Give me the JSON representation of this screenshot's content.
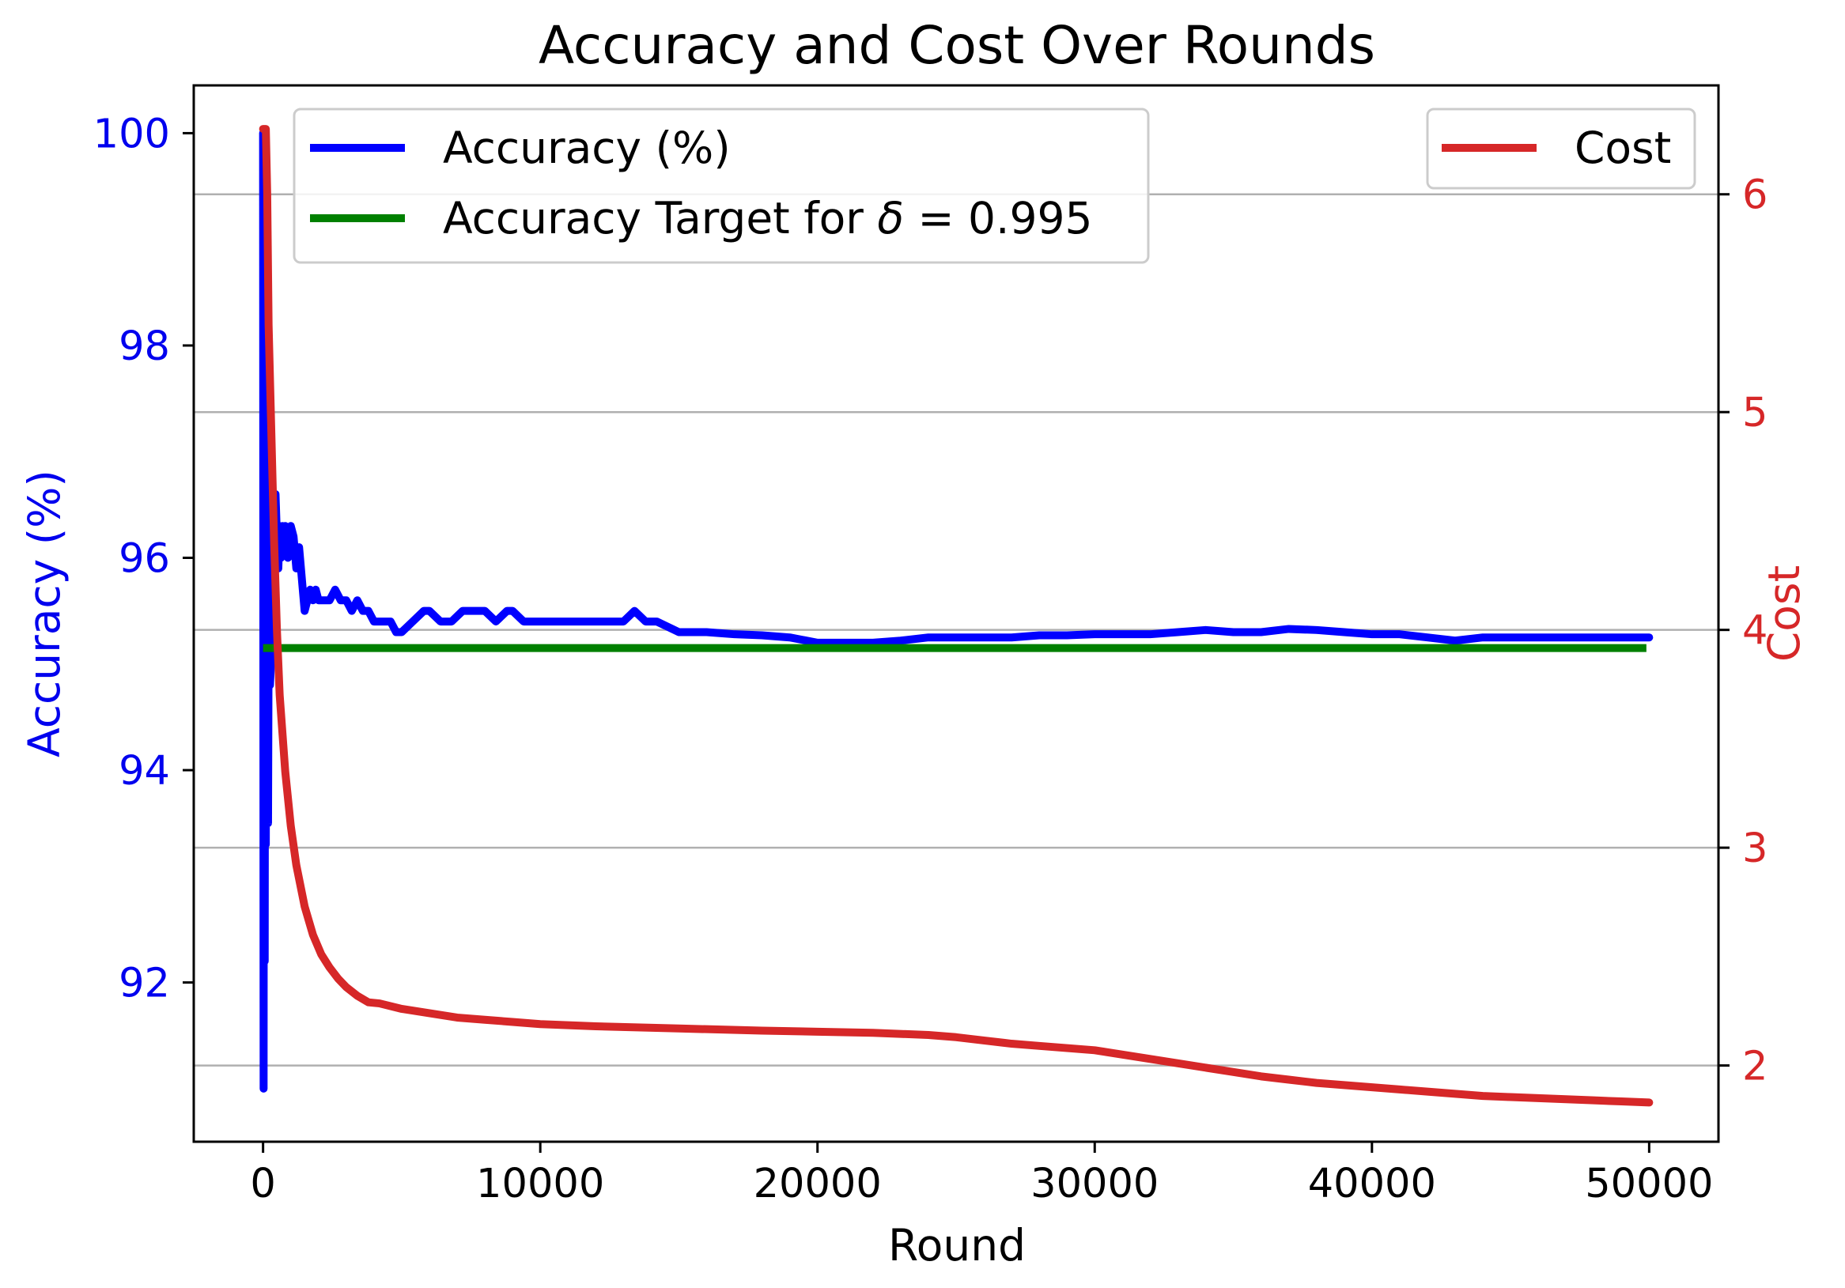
{
  "chart_data": {
    "type": "line",
    "title": "Accuracy and Cost Over Rounds",
    "xlabel": "Round",
    "ylabel_left": "Accuracy (%)",
    "ylabel_right": "Cost",
    "xlim": [
      -2500,
      52500
    ],
    "ylim_left": [
      90.5,
      100.45
    ],
    "ylim_right": [
      1.65,
      6.5
    ],
    "x_ticks": [
      0,
      10000,
      20000,
      30000,
      40000,
      50000
    ],
    "x_tick_labels": [
      "0",
      "10000",
      "20000",
      "30000",
      "40000",
      "50000"
    ],
    "y_left_ticks": [
      92,
      94,
      96,
      98,
      100
    ],
    "y_left_tick_labels": [
      "92",
      "94",
      "96",
      "98",
      "100"
    ],
    "y_right_ticks": [
      2,
      3,
      4,
      5,
      6
    ],
    "y_right_tick_labels": [
      "2",
      "3",
      "4",
      "5",
      "6"
    ],
    "grid": "horizontal, right axis ticks",
    "colors": {
      "left_axis": "#0000ee",
      "right_axis": "#d62728",
      "accuracy": "#0000ff",
      "target": "#008000",
      "cost": "#d62728",
      "grid": "#b0b0b0"
    },
    "legend_left": {
      "placement": "upper-left",
      "entries": [
        {
          "name": "Accuracy (%)",
          "color": "#0000ff",
          "text_parts": [
            "Accuracy (%)"
          ]
        },
        {
          "name": "Accuracy Target for δ = 0.995",
          "color": "#008000",
          "text_parts": [
            "Accuracy Target for ",
            "δ",
            " = 0.995"
          ]
        }
      ]
    },
    "legend_right": {
      "placement": "upper-right",
      "entries": [
        {
          "name": "Cost",
          "color": "#d62728",
          "text_parts": [
            "Cost"
          ]
        }
      ]
    },
    "series": [
      {
        "name": "Accuracy (%)",
        "axis": "left",
        "x": [
          0,
          20,
          40,
          60,
          80,
          100,
          120,
          140,
          160,
          180,
          200,
          250,
          300,
          350,
          400,
          450,
          500,
          550,
          600,
          650,
          700,
          750,
          800,
          900,
          1000,
          1100,
          1200,
          1300,
          1400,
          1500,
          1600,
          1700,
          1800,
          1900,
          2000,
          2200,
          2400,
          2600,
          2800,
          3000,
          3200,
          3400,
          3600,
          3800,
          4000,
          4200,
          4400,
          4600,
          4800,
          5000,
          5400,
          5800,
          6000,
          6400,
          6800,
          7200,
          7600,
          8000,
          8400,
          8800,
          9000,
          9400,
          9800,
          10200,
          10600,
          11000,
          11400,
          11800,
          12200,
          12600,
          13000,
          13400,
          13800,
          14200,
          14600,
          15000,
          16000,
          17000,
          18000,
          19000,
          20000,
          21000,
          22000,
          23000,
          24000,
          25000,
          26000,
          27000,
          28000,
          29000,
          30000,
          31000,
          32000,
          33000,
          34000,
          35000,
          36000,
          37000,
          38000,
          39000,
          40000,
          41000,
          42000,
          43000,
          44000,
          45000,
          46000,
          47000,
          48000,
          49000,
          50000
        ],
        "y": [
          100.0,
          91.0,
          99.2,
          92.2,
          97.6,
          93.3,
          96.8,
          93.6,
          95.7,
          93.5,
          95.2,
          94.8,
          95.1,
          95.4,
          95.9,
          96.6,
          96.2,
          95.9,
          96.3,
          96.0,
          96.3,
          96.1,
          96.3,
          96.0,
          96.3,
          96.2,
          95.9,
          96.1,
          95.8,
          95.5,
          95.6,
          95.7,
          95.6,
          95.7,
          95.6,
          95.6,
          95.6,
          95.7,
          95.6,
          95.6,
          95.5,
          95.6,
          95.5,
          95.5,
          95.4,
          95.4,
          95.4,
          95.4,
          95.3,
          95.3,
          95.4,
          95.5,
          95.5,
          95.4,
          95.4,
          95.5,
          95.5,
          95.5,
          95.4,
          95.5,
          95.5,
          95.4,
          95.4,
          95.4,
          95.4,
          95.4,
          95.4,
          95.4,
          95.4,
          95.4,
          95.4,
          95.5,
          95.4,
          95.4,
          95.35,
          95.3,
          95.3,
          95.28,
          95.27,
          95.25,
          95.2,
          95.2,
          95.2,
          95.22,
          95.25,
          95.25,
          95.25,
          95.25,
          95.27,
          95.27,
          95.28,
          95.28,
          95.28,
          95.3,
          95.32,
          95.3,
          95.3,
          95.33,
          95.32,
          95.3,
          95.28,
          95.28,
          95.25,
          95.22,
          95.25,
          95.25,
          95.25,
          95.25,
          95.25,
          95.25,
          95.25
        ]
      },
      {
        "name": "Accuracy Target for δ = 0.995",
        "axis": "left",
        "x": [
          0,
          49900
        ],
        "y": [
          95.15,
          95.15
        ]
      },
      {
        "name": "Cost",
        "axis": "right",
        "x": [
          0,
          50,
          100,
          150,
          200,
          300,
          400,
          500,
          600,
          800,
          1000,
          1200,
          1500,
          1800,
          2100,
          2400,
          2700,
          3000,
          3400,
          3800,
          4200,
          5000,
          6000,
          7000,
          8000,
          9000,
          10000,
          12000,
          15000,
          18000,
          20000,
          22000,
          24000,
          25000,
          26000,
          27000,
          28000,
          29000,
          30000,
          31000,
          32000,
          33000,
          34000,
          35000,
          36000,
          37000,
          38000,
          39000,
          40000,
          41000,
          42000,
          43000,
          44000,
          45000,
          46000,
          47000,
          48000,
          49000,
          50000
        ],
        "y": [
          6.3,
          6.3,
          6.3,
          6.0,
          5.4,
          4.9,
          4.4,
          4.0,
          3.7,
          3.35,
          3.1,
          2.92,
          2.73,
          2.6,
          2.51,
          2.45,
          2.4,
          2.36,
          2.32,
          2.29,
          2.285,
          2.26,
          2.24,
          2.22,
          2.21,
          2.2,
          2.19,
          2.18,
          2.17,
          2.16,
          2.155,
          2.15,
          2.14,
          2.13,
          2.115,
          2.1,
          2.09,
          2.08,
          2.07,
          2.05,
          2.03,
          2.01,
          1.99,
          1.97,
          1.95,
          1.935,
          1.92,
          1.91,
          1.9,
          1.89,
          1.88,
          1.87,
          1.86,
          1.855,
          1.85,
          1.845,
          1.84,
          1.835,
          1.83
        ]
      }
    ]
  }
}
